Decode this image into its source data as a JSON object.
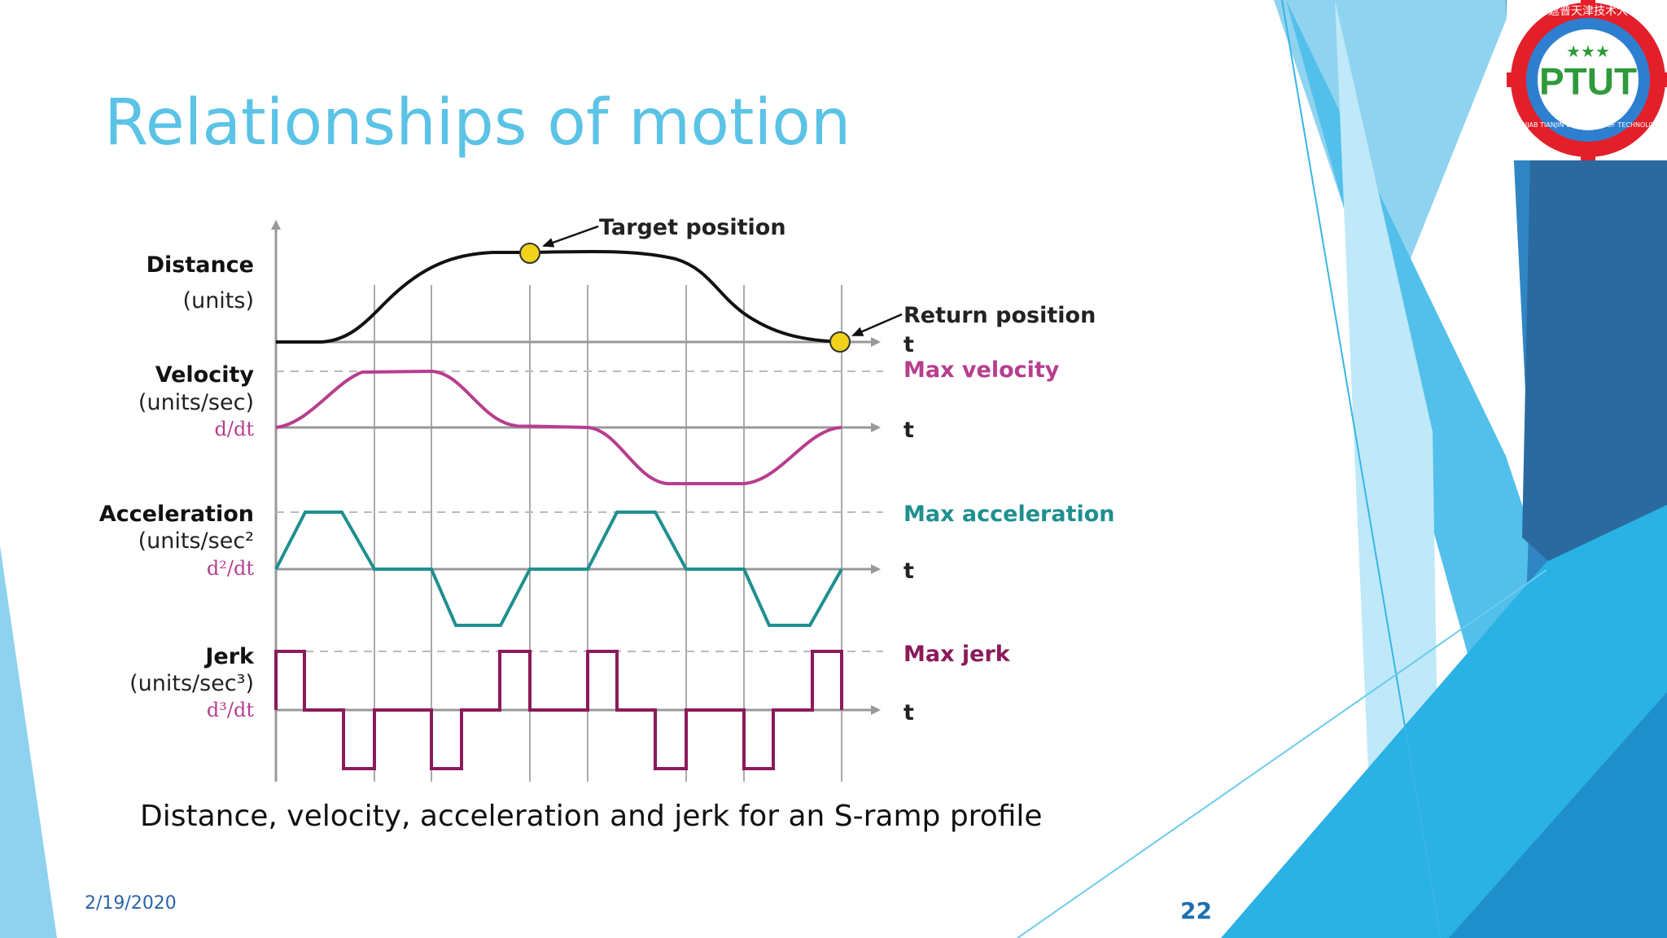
{
  "slide": {
    "title": "Relationships of motion",
    "caption": "Distance, velocity, acceleration and jerk for an S-ramp profile",
    "date": "2/19/2020",
    "page_number": "22"
  },
  "logo": {
    "text": "PTUT",
    "ring_text": "PUNJAB TIANJIN UNIVERSITY OF TECHNOLOGY",
    "chinese_text": "旁遮普天津技术大学",
    "colors": {
      "ring": "#e3202a",
      "inner": "#2e7fd0",
      "text": "#2f9a3a"
    }
  },
  "diagram": {
    "rows": {
      "distance": {
        "label": "Distance",
        "units": "(units)"
      },
      "velocity": {
        "label": "Velocity",
        "units": "(units/sec)",
        "derivative": "d/dt"
      },
      "acceleration": {
        "label": "Acceleration",
        "units": "(units/sec²",
        "derivative": "d²/dt"
      },
      "jerk": {
        "label": "Jerk",
        "units": "(units/sec³)",
        "derivative": "d³/dt"
      }
    },
    "annotations": {
      "target_position": "Target position",
      "return_position": "Return position",
      "max_velocity": "Max velocity",
      "max_acceleration": "Max acceleration",
      "max_jerk": "Max jerk",
      "time_axis": "t"
    },
    "colors": {
      "distance": "#111111",
      "velocity": "#b73e8e",
      "acceleration": "#1f8f8f",
      "jerk": "#8b1a5a",
      "max_velocity_label": "#b73e8e",
      "max_acceleration_label": "#1f8f8f",
      "max_jerk_label": "#8b1a5a",
      "derivative_label": "#b73e8e",
      "marker": "#f2d31b"
    }
  }
}
